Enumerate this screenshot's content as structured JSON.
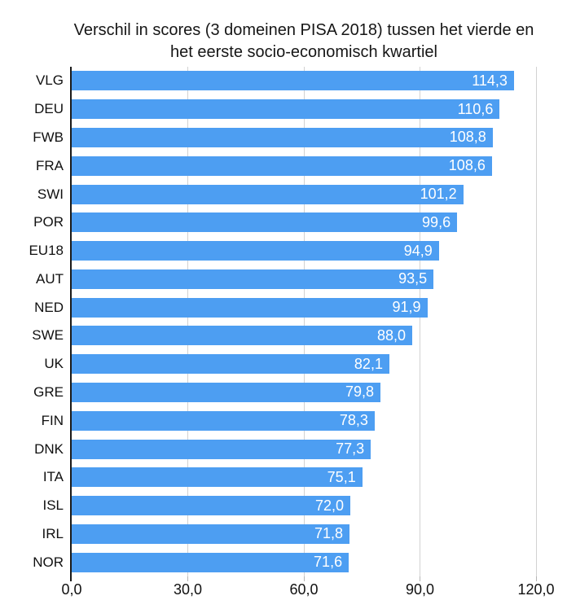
{
  "title": {
    "line1": "Verschil in scores (3 domeinen PISA 2018) tussen het vierde en",
    "line2": "het eerste socio-economisch kwartiel"
  },
  "chart_data": {
    "type": "bar",
    "orientation": "horizontal",
    "title": "Verschil in scores (3 domeinen PISA 2018) tussen het vierde en het eerste socio-economisch kwartiel",
    "categories": [
      "VLG",
      "DEU",
      "FWB",
      "FRA",
      "SWI",
      "POR",
      "EU18",
      "AUT",
      "NED",
      "SWE",
      "UK",
      "GRE",
      "FIN",
      "DNK",
      "ITA",
      "ISL",
      "IRL",
      "NOR"
    ],
    "values": [
      114.3,
      110.6,
      108.8,
      108.6,
      101.2,
      99.6,
      94.9,
      93.5,
      91.9,
      88.0,
      82.1,
      79.8,
      78.3,
      77.3,
      75.1,
      72.0,
      71.8,
      71.6
    ],
    "value_labels": [
      "114,3",
      "110,6",
      "108,8",
      "108,6",
      "101,2",
      "99,6",
      "94,9",
      "93,5",
      "91,9",
      "88,0",
      "82,1",
      "79,8",
      "78,3",
      "77,3",
      "75,1",
      "72,0",
      "71,8",
      "71,6"
    ],
    "xlabel": "",
    "ylabel": "",
    "xlim": [
      0,
      120
    ],
    "x_tick_values": [
      0,
      30,
      60,
      90,
      120
    ],
    "x_tick_labels": [
      "0,0",
      "30,0",
      "60,0",
      "90,0",
      "120,0"
    ],
    "grid": "vertical",
    "legend": "none",
    "bar_color": "#4D9EF2",
    "value_label_color": "#FFFFFF",
    "gridline_color": "#D2D2D2",
    "axis_color": "#1A1A1A"
  }
}
